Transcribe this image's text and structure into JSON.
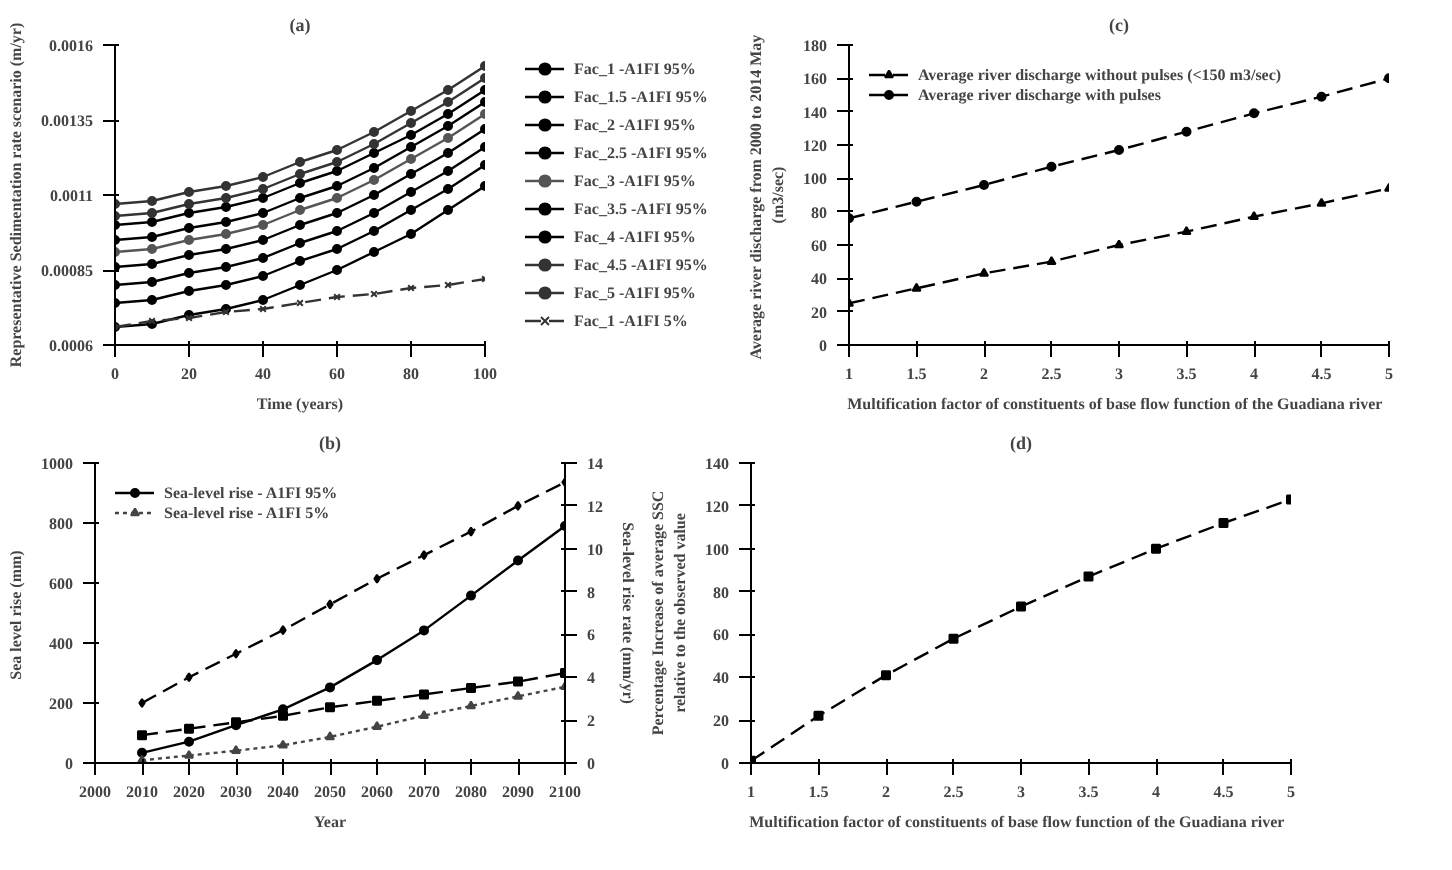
{
  "chart_data": [
    {
      "type": "line",
      "title": "(a)",
      "xlabel": "Time (years)",
      "ylabel": "Representative Sedimentation rate scenario (m/yr)",
      "x": [
        0,
        10,
        20,
        30,
        40,
        50,
        60,
        70,
        80,
        90,
        100
      ],
      "xlim": [
        0,
        100
      ],
      "xticks": [
        0,
        20,
        40,
        60,
        80,
        100
      ],
      "ylim": [
        0.0006,
        0.0016
      ],
      "yticks": [
        0.0006,
        0.00085,
        0.0011,
        0.00135,
        0.0016
      ],
      "grid": false,
      "legend": "right",
      "marker": "circle",
      "line_style": "solid",
      "series": [
        {
          "name": "Fac_1 -A1FI 95%",
          "color": "#000000",
          "values": [
            0.00066,
            0.00067,
            0.0007,
            0.00072,
            0.00075,
            0.0008,
            0.00085,
            0.00091,
            0.00097,
            0.00105,
            0.00113
          ]
        },
        {
          "name": "Fac_1.5 -A1FI 95%",
          "color": "#000000",
          "values": [
            0.00074,
            0.00075,
            0.00078,
            0.0008,
            0.00083,
            0.00088,
            0.00092,
            0.00098,
            0.00105,
            0.00112,
            0.0012
          ]
        },
        {
          "name": "Fac_2 -A1FI 95%",
          "color": "#000000",
          "values": [
            0.0008,
            0.00081,
            0.00084,
            0.00086,
            0.00089,
            0.00094,
            0.00098,
            0.00104,
            0.00111,
            0.00118,
            0.00126
          ]
        },
        {
          "name": "Fac_2.5 -A1FI 95%",
          "color": "#000000",
          "values": [
            0.00086,
            0.00087,
            0.0009,
            0.00092,
            0.00095,
            0.001,
            0.00104,
            0.0011,
            0.00117,
            0.00124,
            0.00132
          ]
        },
        {
          "name": "Fac_3 -A1FI 95%",
          "color": "#555555",
          "values": [
            0.00091,
            0.00092,
            0.00095,
            0.00097,
            0.001,
            0.00105,
            0.00109,
            0.00115,
            0.00122,
            0.00129,
            0.00137
          ]
        },
        {
          "name": "Fac_3.5 -A1FI 95%",
          "color": "#000000",
          "values": [
            0.00095,
            0.00096,
            0.00099,
            0.00101,
            0.00104,
            0.00109,
            0.00113,
            0.00119,
            0.00126,
            0.00133,
            0.00141
          ]
        },
        {
          "name": "Fac_4 -A1FI 95%",
          "color": "#000000",
          "values": [
            0.001,
            0.00101,
            0.00104,
            0.00106,
            0.00109,
            0.00114,
            0.00118,
            0.00124,
            0.0013,
            0.00137,
            0.00145
          ]
        },
        {
          "name": "Fac_4.5 -A1FI 95%",
          "color": "#333333",
          "values": [
            0.00103,
            0.00104,
            0.00107,
            0.00109,
            0.00112,
            0.00117,
            0.00121,
            0.00127,
            0.00134,
            0.00141,
            0.00149
          ]
        },
        {
          "name": "Fac_5 -A1FI 95%",
          "color": "#333333",
          "values": [
            0.00107,
            0.00108,
            0.00111,
            0.00113,
            0.00116,
            0.00121,
            0.00125,
            0.00131,
            0.00138,
            0.00145,
            0.00153
          ]
        },
        {
          "name": "Fac_1 -A1FI 5%",
          "color": "#333333",
          "marker": "cross",
          "line_style": "dashed",
          "values": [
            0.00066,
            0.00068,
            0.00069,
            0.00071,
            0.00072,
            0.00074,
            0.00076,
            0.00077,
            0.00079,
            0.0008,
            0.00082
          ]
        }
      ]
    },
    {
      "type": "line",
      "title": "(c)",
      "xlabel": "Multification  factor of constituents of base flow function of the Guadiana  river",
      "ylabel": "Average river discharge  from 2000 to 2014 May\n(m3/sec)",
      "x": [
        1,
        1.5,
        2,
        2.5,
        3,
        3.5,
        4,
        4.5,
        5
      ],
      "xlim": [
        1,
        5
      ],
      "xticks": [
        1,
        1.5,
        2,
        2.5,
        3,
        3.5,
        4,
        4.5,
        5
      ],
      "ylim": [
        0,
        180
      ],
      "yticks": [
        0,
        20,
        40,
        60,
        80,
        100,
        120,
        140,
        160,
        180
      ],
      "grid": false,
      "legend": "top left",
      "line_style": "dashed",
      "series": [
        {
          "name": "Average river discharge without pulses (<150 m3/sec)",
          "color": "#000000",
          "marker": "triangle",
          "values": [
            25,
            34,
            43,
            50,
            60,
            68,
            77,
            85,
            94
          ]
        },
        {
          "name": "Average river discharge with pulses",
          "color": "#000000",
          "marker": "circle",
          "values": [
            76,
            86,
            96,
            107,
            117,
            128,
            139,
            149,
            160
          ]
        }
      ]
    },
    {
      "type": "line",
      "title": "(b)",
      "xlabel": "Year",
      "ylabel": "Sea level rise  (mm)",
      "y2label": "Sea-level rise rate (mm/yr)",
      "x": [
        2010,
        2020,
        2030,
        2040,
        2050,
        2060,
        2070,
        2080,
        2090,
        2100
      ],
      "xlim": [
        2000,
        2100
      ],
      "xticks": [
        2000,
        2010,
        2020,
        2030,
        2040,
        2050,
        2060,
        2070,
        2080,
        2090,
        2100
      ],
      "ylim": [
        0,
        1000
      ],
      "yticks": [
        0,
        200,
        400,
        600,
        800,
        1000
      ],
      "y2lim": [
        0,
        14
      ],
      "y2ticks": [
        0,
        2,
        4,
        6,
        8,
        10,
        12,
        14
      ],
      "grid": false,
      "legend": "top left",
      "series": [
        {
          "name": "Sea-level rise - A1FI 95%",
          "color": "#000000",
          "marker": "circle",
          "line_style": "solid",
          "values": [
            34,
            71,
            126,
            179,
            252,
            343,
            442,
            558,
            675,
            790
          ]
        },
        {
          "name": "Sea-level rise - A1FI 5%",
          "color": "#444444",
          "marker": "triangle",
          "line_style": "dotted",
          "values": [
            9,
            25,
            41,
            59,
            87,
            121,
            158,
            190,
            222,
            254
          ]
        },
        {
          "color": "#000000",
          "marker": "diamond",
          "line_style": "dashed",
          "axis": "y2",
          "values": [
            2.8,
            4.0,
            5.1,
            6.2,
            7.4,
            8.6,
            9.7,
            10.8,
            12.0,
            13.1
          ]
        },
        {
          "color": "#000000",
          "marker": "square",
          "line_style": "dashed",
          "axis": "y2",
          "values": [
            1.3,
            1.6,
            1.9,
            2.2,
            2.6,
            2.9,
            3.2,
            3.5,
            3.8,
            4.2
          ]
        }
      ]
    },
    {
      "type": "line",
      "title": "(d)",
      "xlabel": "Multification  factor of constituents of base flow function of the Guadiana  river",
      "ylabel": "Percentage Increase of average SSC\nrelative to the observed value",
      "x": [
        1,
        1.5,
        2,
        2.5,
        3,
        3.5,
        4,
        4.5,
        5
      ],
      "xlim": [
        1,
        5
      ],
      "xticks": [
        1,
        1.5,
        2,
        2.5,
        3,
        3.5,
        4,
        4.5,
        5
      ],
      "ylim": [
        0,
        140
      ],
      "yticks": [
        0,
        20,
        40,
        60,
        80,
        100,
        120,
        140
      ],
      "grid": false,
      "legend": false,
      "marker": "square",
      "line_style": "dashed",
      "series": [
        {
          "color": "#000000",
          "values": [
            1,
            22,
            41,
            58,
            73,
            87,
            100,
            112,
            123
          ]
        }
      ]
    }
  ]
}
